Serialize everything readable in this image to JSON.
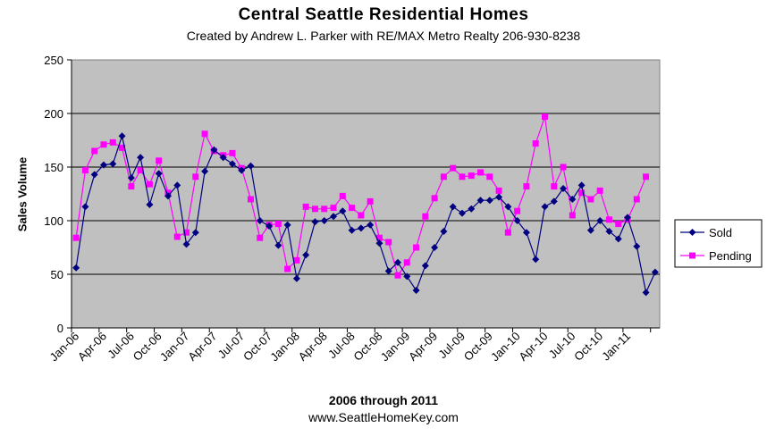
{
  "chart_data": {
    "type": "line",
    "title": "Central Seattle Residential Homes",
    "subtitle": "Created by Andrew L. Parker with RE/MAX Metro Realty 206-930-8238",
    "xlabel": "2006 through 2011",
    "ylabel": "Sales Volume",
    "footer": "www.SeattleHomeKey.com",
    "ylim": [
      0,
      250
    ],
    "yticks": [
      "0",
      "50",
      "100",
      "150",
      "200",
      "250"
    ],
    "grid": true,
    "legend": "right",
    "plot_background": "#c0c0c0",
    "xtick_labels": [
      "Jan-06",
      "Apr-06",
      "Jul-06",
      "Oct-06",
      "Jan-07",
      "Apr-07",
      "Jul-07",
      "Oct-07",
      "Jan-08",
      "Apr-08",
      "Jul-08",
      "Oct-08",
      "Jan-09",
      "Apr-09",
      "Jul-09",
      "Oct-09",
      "Jan-10",
      "Apr-10",
      "Jul-10",
      "Oct-10",
      "Jan-11"
    ],
    "series": [
      {
        "name": "Sold",
        "color": "#000080",
        "marker": "diamond",
        "values": [
          56,
          113,
          143,
          152,
          153,
          179,
          140,
          159,
          115,
          144,
          123,
          133,
          78,
          89,
          146,
          166,
          159,
          153,
          147,
          151,
          100,
          95,
          77,
          96,
          46,
          68,
          99,
          100,
          104,
          109,
          91,
          93,
          96,
          79,
          53,
          61,
          48,
          35,
          58,
          75,
          90,
          113,
          107,
          111,
          119,
          119,
          122,
          113,
          100,
          89,
          64,
          113,
          118,
          130,
          120,
          133,
          91,
          100,
          90,
          83,
          103,
          76,
          33,
          52
        ],
        "notes": ""
      },
      {
        "name": "Pending",
        "color": "#ff00ff",
        "marker": "square",
        "values": [
          84,
          147,
          165,
          171,
          173,
          168,
          132,
          147,
          134,
          156,
          126,
          85,
          89,
          141,
          181,
          165,
          161,
          163,
          149,
          120,
          84,
          96,
          97,
          55,
          63,
          113,
          111,
          111,
          112,
          123,
          112,
          105,
          118,
          84,
          80,
          49,
          61,
          75,
          104,
          121,
          141,
          149,
          141,
          142,
          145,
          141,
          128,
          89,
          109,
          132,
          172,
          197,
          132,
          150,
          105,
          126,
          120,
          128,
          101,
          97,
          101,
          120,
          141
        ],
        "notes": ""
      }
    ]
  }
}
